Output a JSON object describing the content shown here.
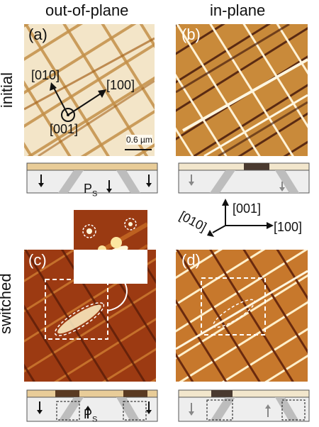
{
  "columns": {
    "left": "out-of-plane",
    "right": "in-plane"
  },
  "rows": {
    "top": "initial",
    "bottom": "switched"
  },
  "panels": {
    "a": "(a)",
    "b": "(b)",
    "c": "(c)",
    "d": "(d)"
  },
  "directions": {
    "d010": "[010]",
    "d100": "[100]",
    "d001": "[001]"
  },
  "scalebar": "0.6 µm",
  "polarization": {
    "symbol": "P",
    "subscript": "S"
  },
  "colors": {
    "afm_light": "#f6ead2",
    "afm_brown": "#b8792a",
    "afm_dark": "#7a2a10",
    "afm_bright": "#fff2c8"
  }
}
